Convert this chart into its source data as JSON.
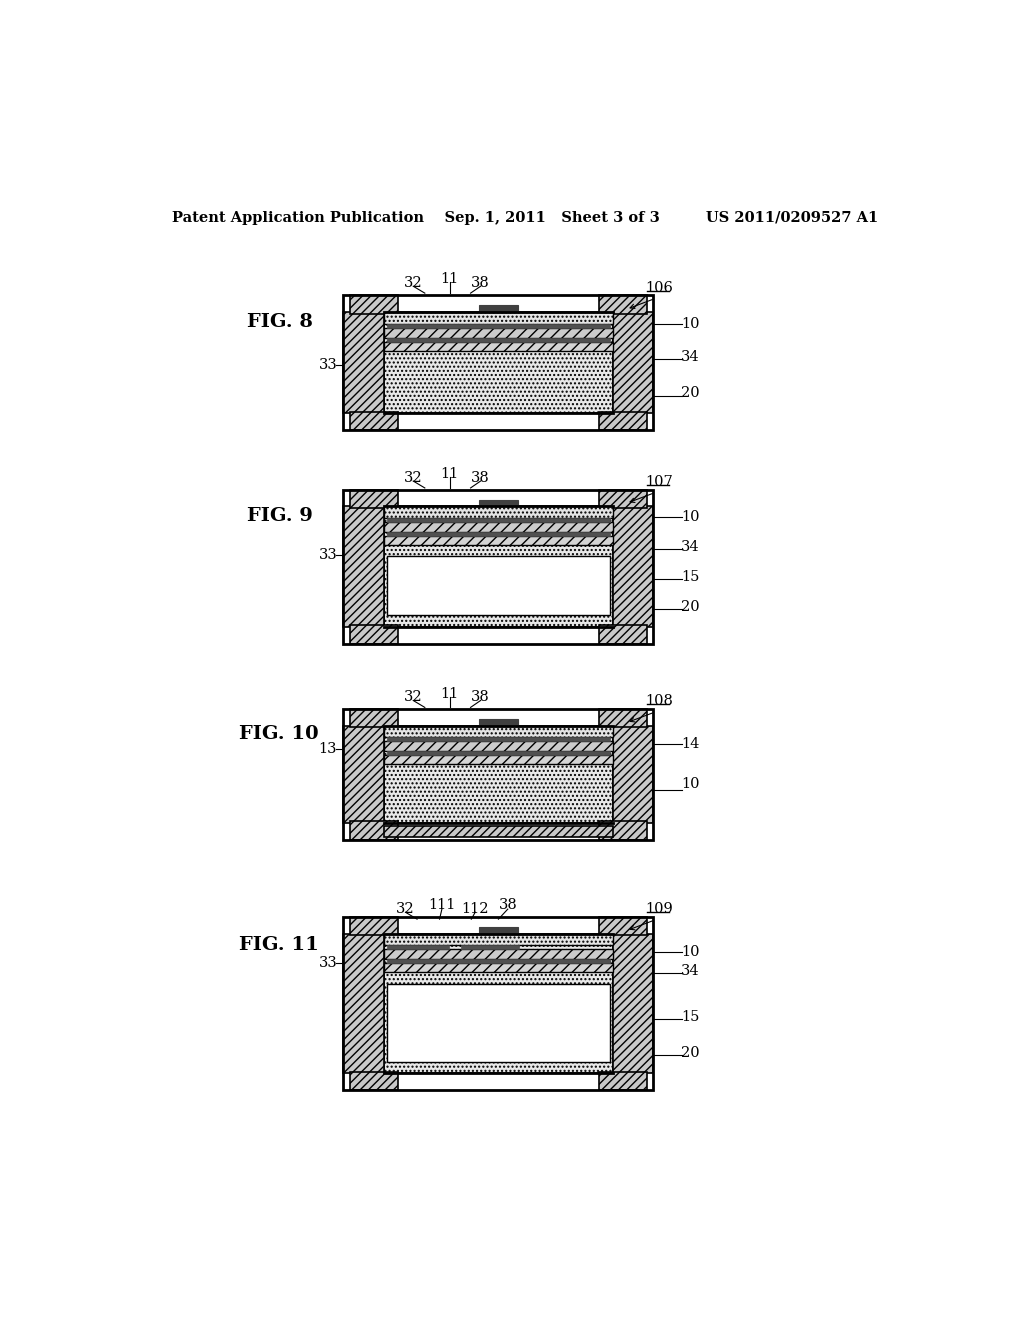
{
  "title_text": "Patent Application Publication    Sep. 1, 2011   Sheet 3 of 3         US 2011/0209527 A1",
  "background_color": "#ffffff",
  "fig_labels": [
    "FIG. 8",
    "FIG. 9",
    "FIG. 10",
    "FIG. 11"
  ],
  "line_color": "#000000",
  "fill_gray_light": "#e8e8e8",
  "fill_gray_medium": "#d0d0d0",
  "fill_hatch": "#c8c8c8",
  "fill_dark": "#404040",
  "fill_dark2": "#505050",
  "fill_white": "#ffffff"
}
